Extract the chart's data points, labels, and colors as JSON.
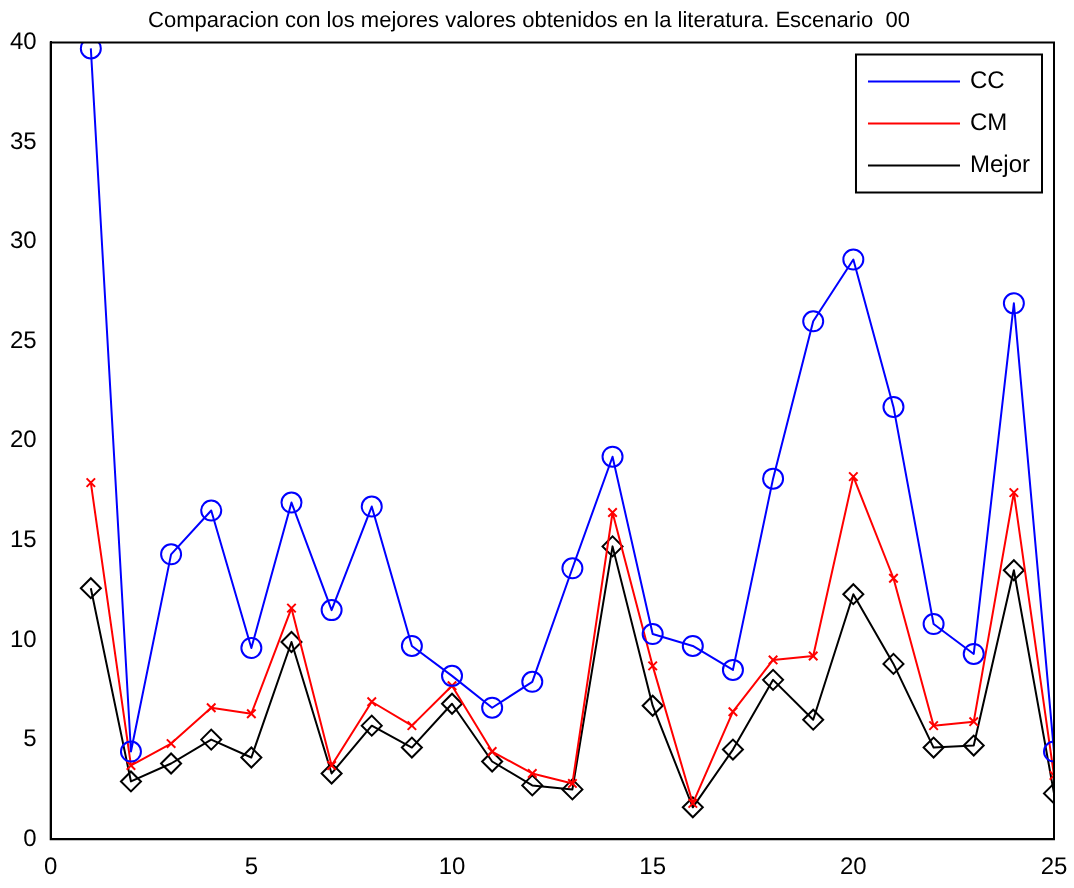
{
  "chart_data": {
    "type": "line",
    "title": "Comparacion con los mejores valores obtenidos en la literatura. Escenario  00",
    "x": [
      1,
      2,
      3,
      4,
      5,
      6,
      7,
      8,
      9,
      10,
      11,
      12,
      13,
      14,
      15,
      16,
      17,
      18,
      19,
      20,
      21,
      22,
      23,
      24,
      25
    ],
    "series": [
      {
        "name": "CC",
        "color": "#0000ff",
        "marker": "circle",
        "values": [
          39.7,
          4.4,
          14.3,
          16.5,
          9.6,
          16.9,
          11.5,
          16.7,
          9.7,
          8.2,
          6.6,
          7.9,
          13.6,
          19.2,
          10.3,
          9.7,
          8.5,
          18.1,
          26,
          29.1,
          21.7,
          10.8,
          9.3,
          26.9,
          4.4
        ]
      },
      {
        "name": "CM",
        "color": "#ff0000",
        "marker": "cross",
        "values": [
          17.9,
          3.7,
          4.8,
          6.6,
          6.3,
          11.6,
          3.7,
          6.9,
          5.7,
          7.7,
          4.4,
          3.3,
          2.8,
          16.4,
          8.7,
          1.8,
          6.4,
          9.0,
          9.2,
          18.2,
          13.1,
          5.7,
          5.9,
          17.4,
          3.2
        ]
      },
      {
        "name": "Mejor",
        "color": "#000000",
        "marker": "diamond",
        "values": [
          12.6,
          2.9,
          3.8,
          5.0,
          4.1,
          9.9,
          3.3,
          5.7,
          4.6,
          6.8,
          3.9,
          2.7,
          2.5,
          14.7,
          6.7,
          1.6,
          4.5,
          8.0,
          6.0,
          12.3,
          8.8,
          4.6,
          4.7,
          13.5,
          2.3
        ]
      }
    ],
    "xlim": [
      0,
      25
    ],
    "xticks": [
      0,
      5,
      10,
      15,
      20,
      25
    ],
    "ylim": [
      0,
      40
    ],
    "yticks": [
      0,
      5,
      10,
      15,
      20,
      25,
      30,
      35,
      40
    ],
    "grid": false,
    "legend": "top right"
  }
}
